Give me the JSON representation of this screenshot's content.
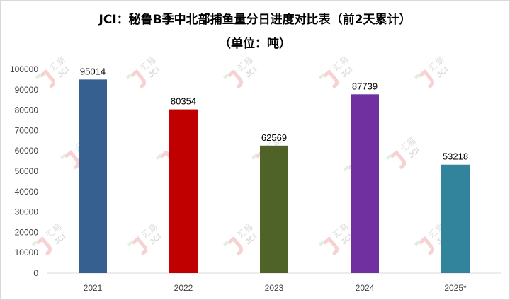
{
  "chart_data": {
    "type": "bar",
    "title": "JCI：秘鲁B季中北部捕鱼量分日进度对比表（前2天累计）",
    "subtitle": "（单位：吨）",
    "categories": [
      "2021",
      "2022",
      "2023",
      "2024",
      "2025*"
    ],
    "values": [
      95014,
      80354,
      62569,
      87739,
      53218
    ],
    "colors": [
      "#35608f",
      "#c00000",
      "#4f6228",
      "#7030a0",
      "#31849b"
    ],
    "ylim": [
      0,
      100000
    ],
    "yticks": [
      0,
      10000,
      20000,
      30000,
      40000,
      50000,
      60000,
      70000,
      80000,
      90000,
      100000
    ],
    "grid": false,
    "legend": "none"
  },
  "watermark": {
    "text": "汇易",
    "sub": "JCI"
  }
}
